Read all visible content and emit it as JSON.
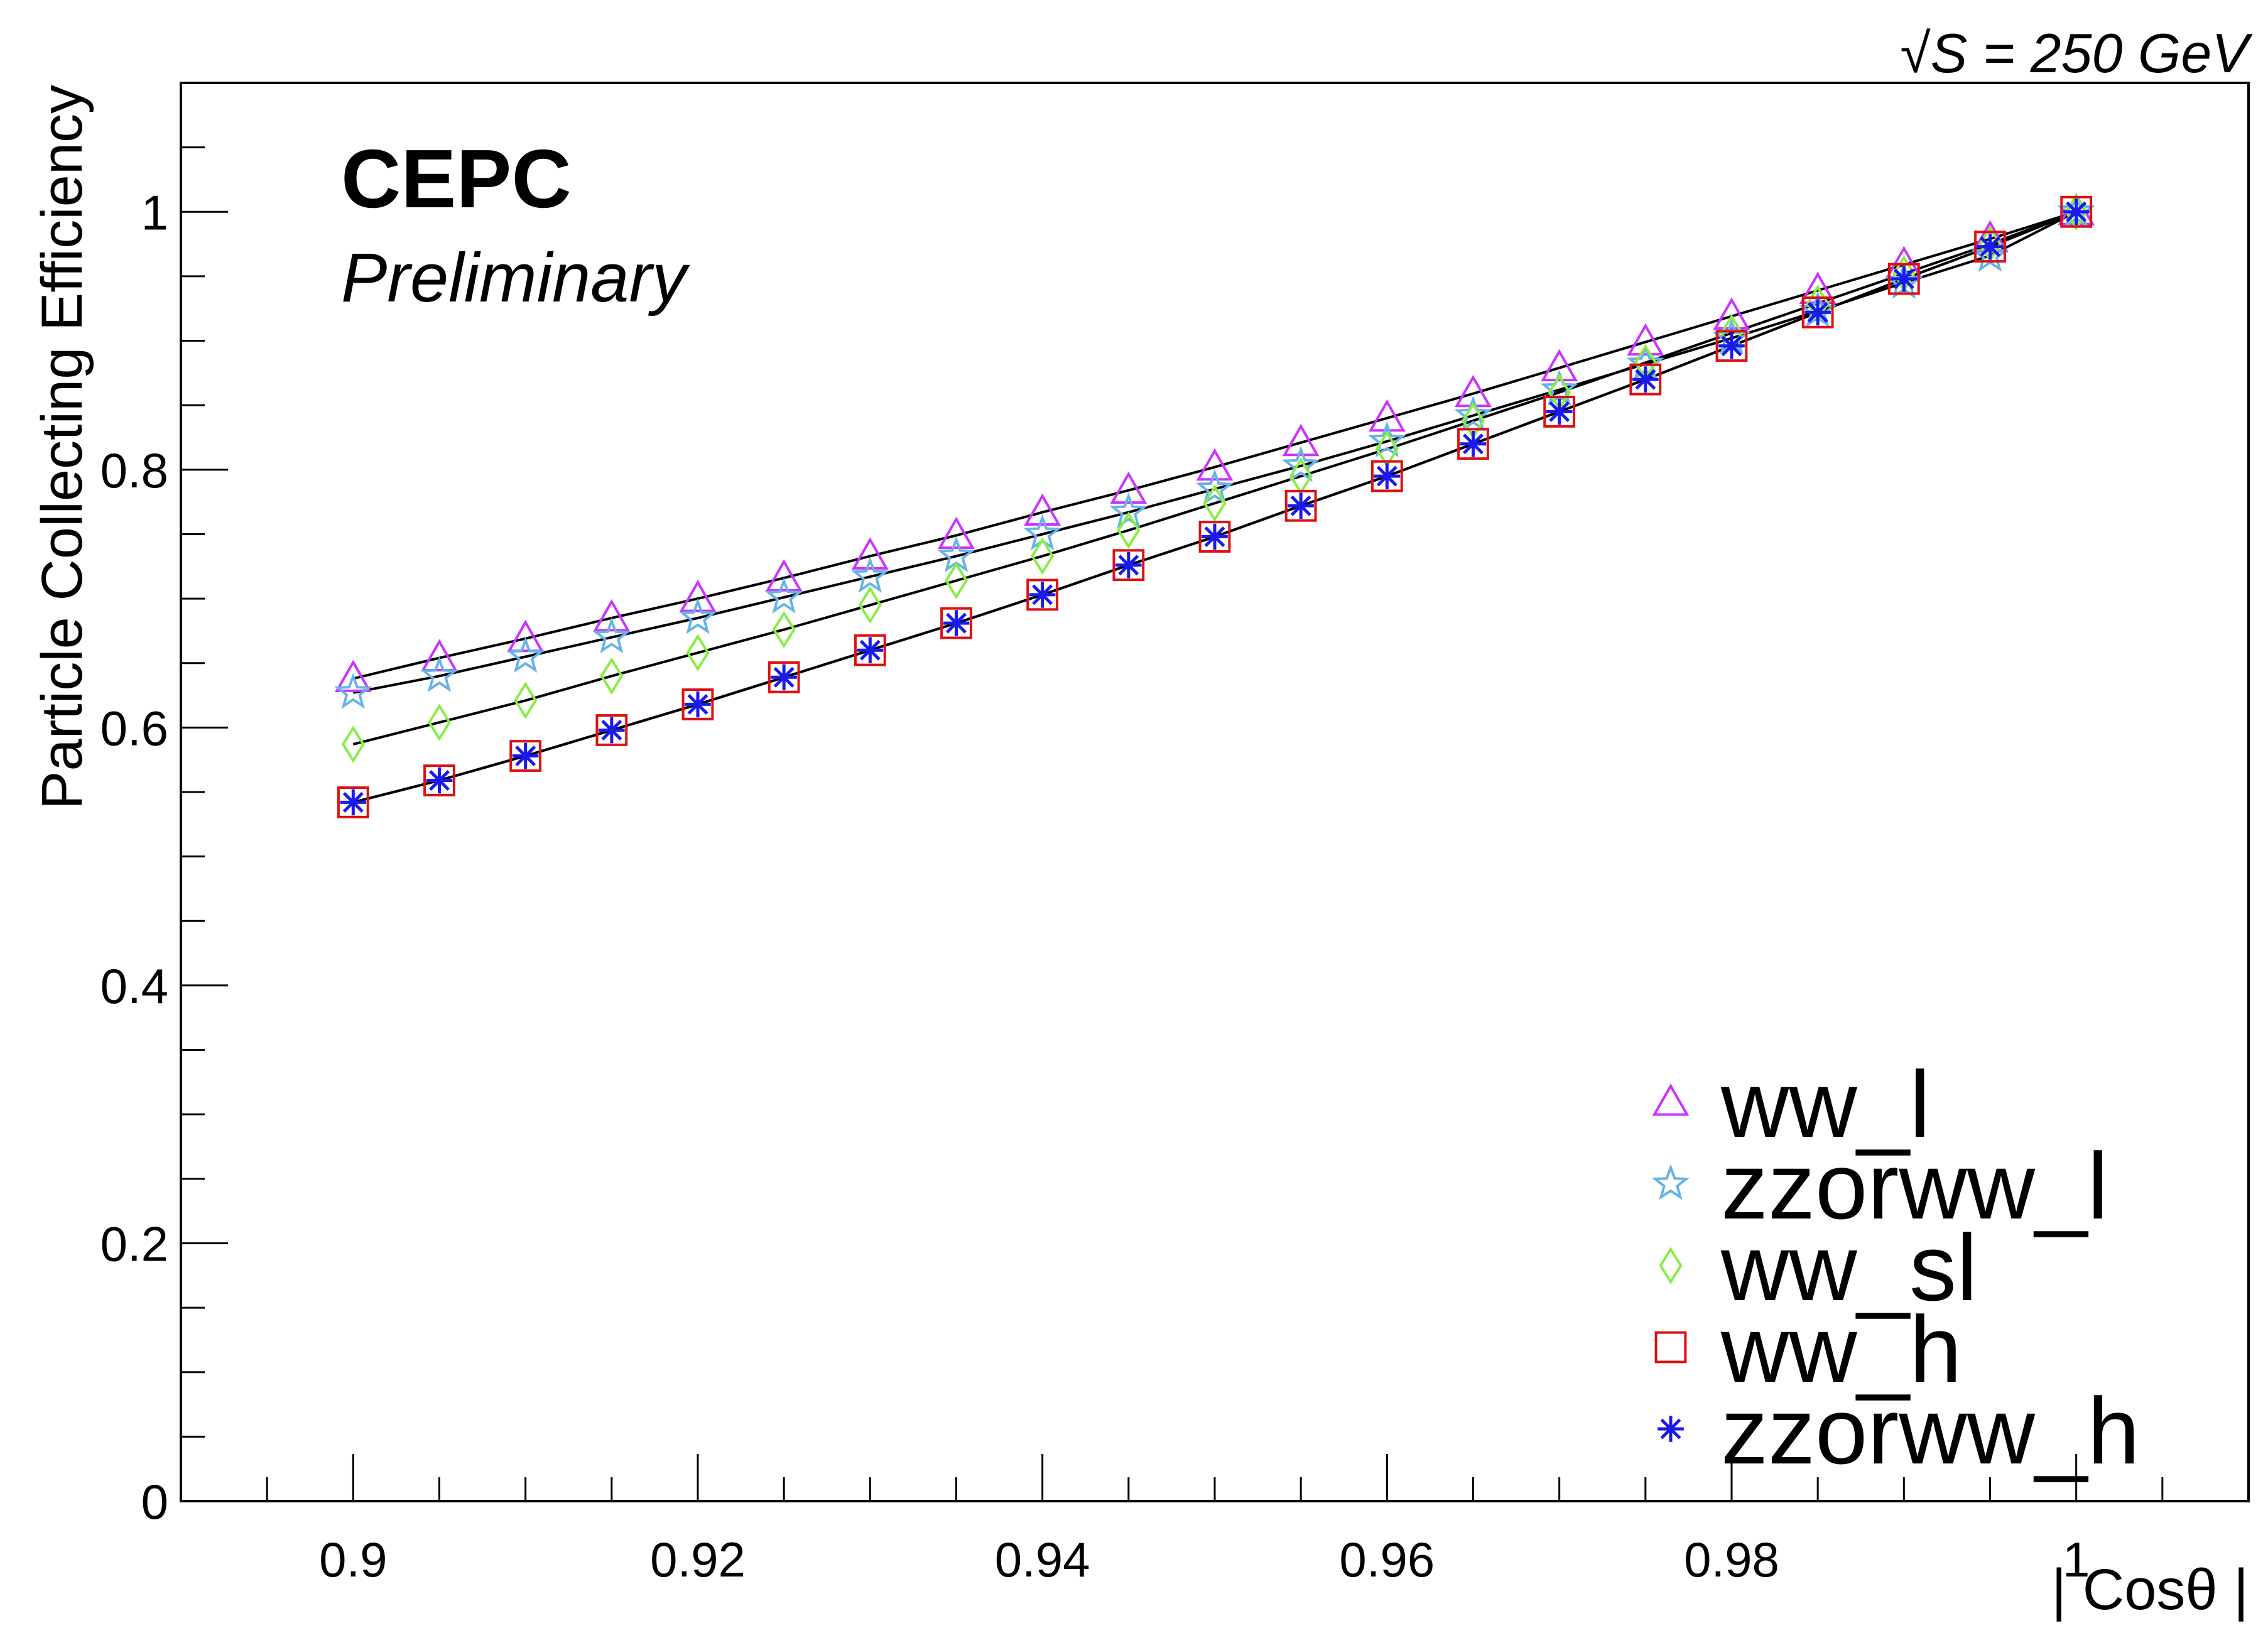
{
  "chart_data": {
    "type": "scatter",
    "energy_label": "√S = 250 GeV",
    "title": "CEPC",
    "subtitle": "Preliminary",
    "xlabel": "| Cosθ |",
    "ylabel": "Particle Collecting Efficiency",
    "xlim": [
      0.89,
      1.01
    ],
    "ylim": [
      0,
      1.1
    ],
    "x_ticks": [
      0.9,
      0.92,
      0.94,
      0.96,
      0.98,
      1
    ],
    "x_tick_labels": [
      "0.9",
      "0.92",
      "0.94",
      "0.96",
      "0.98",
      "1"
    ],
    "y_ticks": [
      0,
      0.2,
      0.4,
      0.6,
      0.8,
      1
    ],
    "y_tick_labels": [
      "0",
      "0.2",
      "0.4",
      "0.6",
      "0.8",
      "1"
    ],
    "grid": false,
    "legend_position": "bottom-right",
    "x": [
      0.9,
      0.905,
      0.91,
      0.915,
      0.92,
      0.925,
      0.93,
      0.935,
      0.94,
      0.945,
      0.95,
      0.955,
      0.96,
      0.965,
      0.97,
      0.975,
      0.98,
      0.985,
      0.99,
      0.995,
      1.0
    ],
    "series": [
      {
        "name": "ww_l",
        "marker": "triangle",
        "color": "#cc33ff",
        "values": [
          0.638,
          0.654,
          0.669,
          0.685,
          0.7,
          0.716,
          0.733,
          0.749,
          0.767,
          0.784,
          0.802,
          0.821,
          0.84,
          0.859,
          0.879,
          0.899,
          0.919,
          0.939,
          0.959,
          0.979,
          1.0
        ]
      },
      {
        "name": "zzorww_l",
        "marker": "star",
        "color": "#66b3e6",
        "values": [
          0.627,
          0.64,
          0.655,
          0.67,
          0.685,
          0.701,
          0.717,
          0.733,
          0.75,
          0.767,
          0.785,
          0.803,
          0.822,
          0.842,
          0.862,
          0.882,
          0.902,
          0.923,
          0.945,
          0.966,
          1.0
        ]
      },
      {
        "name": "ww_sl",
        "marker": "diamond",
        "color": "#88ee44",
        "values": [
          0.587,
          0.604,
          0.621,
          0.64,
          0.658,
          0.676,
          0.695,
          0.714,
          0.733,
          0.753,
          0.774,
          0.795,
          0.816,
          0.838,
          0.86,
          0.883,
          0.906,
          0.929,
          0.952,
          0.975,
          1.0
        ]
      },
      {
        "name": "ww_h",
        "marker": "square",
        "color": "#dd1111",
        "values": [
          0.542,
          0.559,
          0.578,
          0.598,
          0.618,
          0.639,
          0.66,
          0.681,
          0.703,
          0.726,
          0.748,
          0.772,
          0.795,
          0.82,
          0.845,
          0.87,
          0.896,
          0.922,
          0.948,
          0.973,
          1.0
        ]
      },
      {
        "name": "zzorww_h",
        "marker": "asterisk",
        "color": "#1a1aee",
        "values": [
          0.542,
          0.559,
          0.578,
          0.598,
          0.618,
          0.639,
          0.66,
          0.681,
          0.703,
          0.726,
          0.748,
          0.772,
          0.795,
          0.82,
          0.845,
          0.87,
          0.896,
          0.922,
          0.948,
          0.973,
          1.0
        ]
      }
    ]
  }
}
